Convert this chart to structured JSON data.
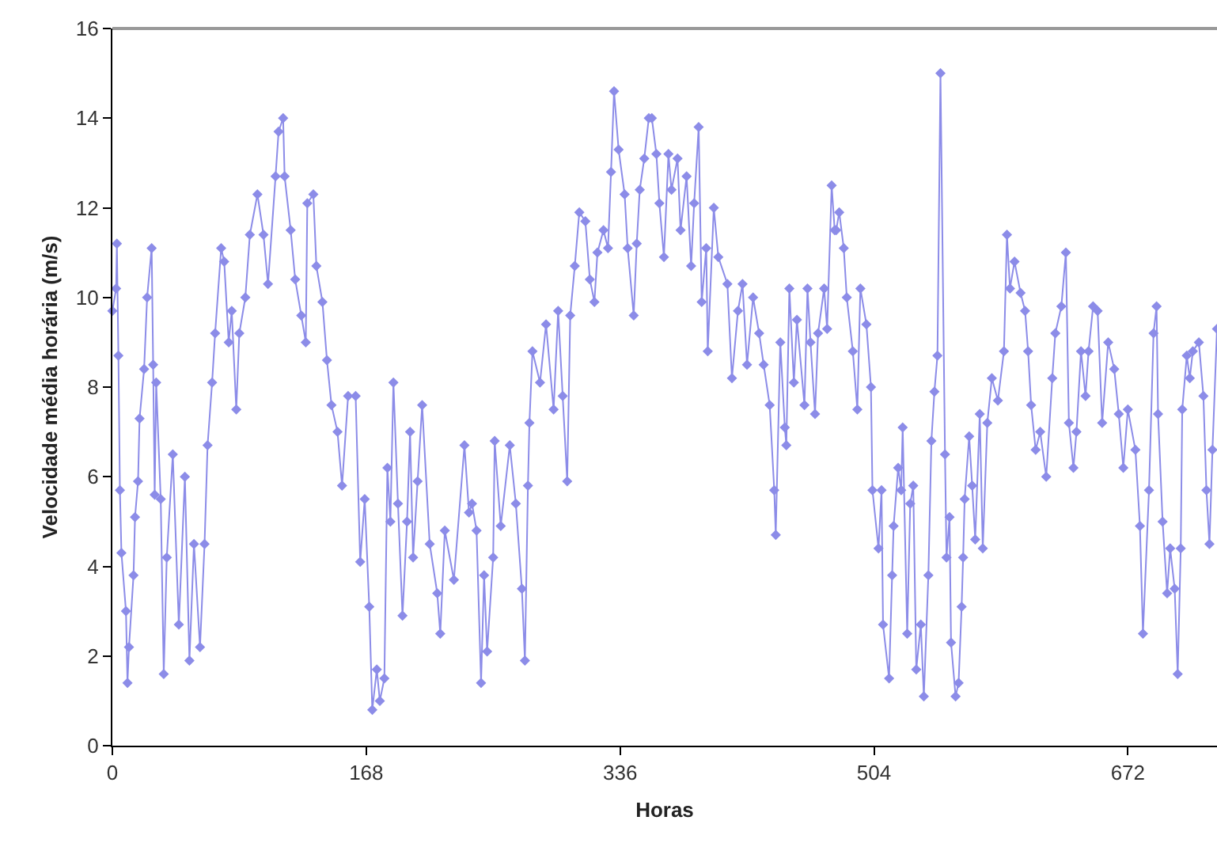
{
  "chart_data": {
    "type": "line",
    "xlabel": "Horas",
    "ylabel": "Velocidade média horária (m/s)",
    "x": [
      0,
      2.5,
      3,
      4,
      5,
      6,
      9,
      10,
      11,
      14,
      15,
      17,
      18,
      21,
      23,
      26,
      27,
      28,
      29,
      32,
      34,
      36,
      40,
      44,
      48,
      51,
      54,
      58,
      61,
      63,
      66,
      68,
      72,
      74,
      77,
      79,
      82,
      84,
      88,
      91,
      96,
      100,
      103,
      108,
      110,
      113,
      114,
      118,
      121,
      125,
      128,
      129,
      133,
      135,
      139,
      142,
      145,
      149,
      152,
      156,
      161,
      164,
      167,
      170,
      172,
      175,
      177,
      180,
      182,
      184,
      186,
      189,
      192,
      195,
      197,
      199,
      202,
      205,
      210,
      215,
      217,
      220,
      226,
      233,
      236,
      238,
      241,
      244,
      246,
      248,
      252,
      253,
      257,
      263,
      267,
      271,
      273,
      275,
      276,
      278,
      283,
      287,
      292,
      295,
      298,
      301,
      303,
      306,
      309,
      313,
      316,
      319,
      321,
      325,
      328,
      330,
      332,
      335,
      339,
      341,
      345,
      347,
      349,
      352,
      355,
      357,
      360,
      362,
      365,
      368,
      370,
      374,
      376,
      380,
      383,
      385,
      388,
      390,
      393,
      394,
      398,
      401,
      407,
      410,
      414,
      417,
      420,
      424,
      428,
      431,
      435,
      438,
      439,
      442,
      445,
      446,
      448,
      451,
      453,
      458,
      460,
      462,
      465,
      467,
      471,
      473,
      476,
      478,
      479,
      481,
      484,
      486,
      490,
      493,
      495,
      499,
      502,
      503,
      507,
      509,
      510,
      514,
      516,
      517,
      520,
      522,
      523,
      526,
      528,
      530,
      532,
      535,
      537,
      540,
      542,
      544,
      546,
      548,
      551,
      552,
      554,
      555,
      558,
      560,
      562,
      563,
      564,
      567,
      569,
      571,
      574,
      576,
      579,
      582,
      586,
      590,
      592,
      594,
      597,
      601,
      604,
      606,
      608,
      611,
      614,
      618,
      622,
      624,
      628,
      631,
      633,
      636,
      638,
      641,
      644,
      646,
      649,
      652,
      655,
      659,
      663,
      666,
      669,
      672,
      677,
      680,
      682,
      686,
      689,
      691,
      692,
      695,
      698,
      700,
      703,
      705,
      707,
      708,
      711,
      713,
      715,
      719,
      722,
      724,
      726,
      728,
      731
    ],
    "series": [
      {
        "color": "#8c8ce8",
        "values": [
          9.7,
          10.2,
          11.2,
          8.7,
          5.7,
          4.3,
          3.0,
          1.4,
          2.2,
          3.8,
          5.1,
          5.9,
          7.3,
          8.4,
          10.0,
          11.1,
          8.5,
          5.6,
          8.1,
          5.5,
          1.6,
          4.2,
          6.5,
          2.7,
          6.0,
          1.9,
          4.5,
          2.2,
          4.5,
          6.7,
          8.1,
          9.2,
          11.1,
          10.8,
          9.0,
          9.7,
          7.5,
          9.2,
          10.0,
          11.4,
          12.3,
          11.4,
          10.3,
          12.7,
          13.7,
          14.0,
          12.7,
          11.5,
          10.4,
          9.6,
          9.0,
          12.1,
          12.3,
          10.7,
          9.9,
          8.6,
          7.6,
          7.0,
          5.8,
          7.8,
          7.8,
          4.1,
          5.5,
          3.1,
          0.8,
          1.7,
          1.0,
          1.5,
          6.2,
          5.0,
          8.1,
          5.4,
          2.9,
          5.0,
          7.0,
          4.2,
          5.9,
          7.6,
          4.5,
          3.4,
          2.5,
          4.8,
          3.7,
          6.7,
          5.2,
          5.4,
          4.8,
          1.4,
          3.8,
          2.1,
          4.2,
          6.8,
          4.9,
          6.7,
          5.4,
          3.5,
          1.9,
          5.8,
          7.2,
          8.8,
          8.1,
          9.4,
          7.5,
          9.7,
          7.8,
          5.9,
          9.6,
          10.7,
          11.9,
          11.7,
          10.4,
          9.9,
          11.0,
          11.5,
          11.1,
          12.8,
          14.6,
          13.3,
          12.3,
          11.1,
          9.6,
          11.2,
          12.4,
          13.1,
          14.0,
          14.0,
          13.2,
          12.1,
          10.9,
          13.2,
          12.4,
          13.1,
          11.5,
          12.7,
          10.7,
          12.1,
          13.8,
          9.9,
          11.1,
          8.8,
          12.0,
          10.9,
          10.3,
          8.2,
          9.7,
          10.3,
          8.5,
          10.0,
          9.2,
          8.5,
          7.6,
          5.7,
          4.7,
          9.0,
          7.1,
          6.7,
          10.2,
          8.1,
          9.5,
          7.6,
          10.2,
          9.0,
          7.4,
          9.2,
          10.2,
          9.3,
          12.5,
          11.5,
          11.5,
          11.9,
          11.1,
          10.0,
          8.8,
          7.5,
          10.2,
          9.4,
          8.0,
          5.7,
          4.4,
          5.7,
          2.7,
          1.5,
          3.8,
          4.9,
          6.2,
          5.7,
          7.1,
          2.5,
          5.4,
          5.8,
          1.7,
          2.7,
          1.1,
          3.8,
          6.8,
          7.9,
          8.7,
          15.0,
          6.5,
          4.2,
          5.1,
          2.3,
          1.1,
          1.4,
          3.1,
          4.2,
          5.5,
          6.9,
          5.8,
          4.6,
          7.4,
          4.4,
          7.2,
          8.2,
          7.7,
          8.8,
          11.4,
          10.2,
          10.8,
          10.1,
          9.7,
          8.8,
          7.6,
          6.6,
          7.0,
          6.0,
          8.2,
          9.2,
          9.8,
          11.0,
          7.2,
          6.2,
          7.0,
          8.8,
          7.8,
          8.8,
          9.8,
          9.7,
          7.2,
          9.0,
          8.4,
          7.4,
          6.2,
          7.5,
          6.6,
          4.9,
          2.5,
          5.7,
          9.2,
          9.8,
          7.4,
          5.0,
          3.4,
          4.4,
          3.5,
          1.6,
          4.4,
          7.5,
          8.7,
          8.2,
          8.8,
          9.0,
          7.8,
          5.7,
          4.5,
          6.6,
          9.3
        ]
      }
    ],
    "xlim": [
      0,
      731
    ],
    "xticks": [
      0,
      168,
      336,
      504,
      672
    ],
    "ylim": [
      0,
      16
    ],
    "yticks": [
      0,
      2,
      4,
      6,
      8,
      10,
      12,
      14,
      16
    ],
    "marker": "diamond",
    "line_style": "solid"
  }
}
